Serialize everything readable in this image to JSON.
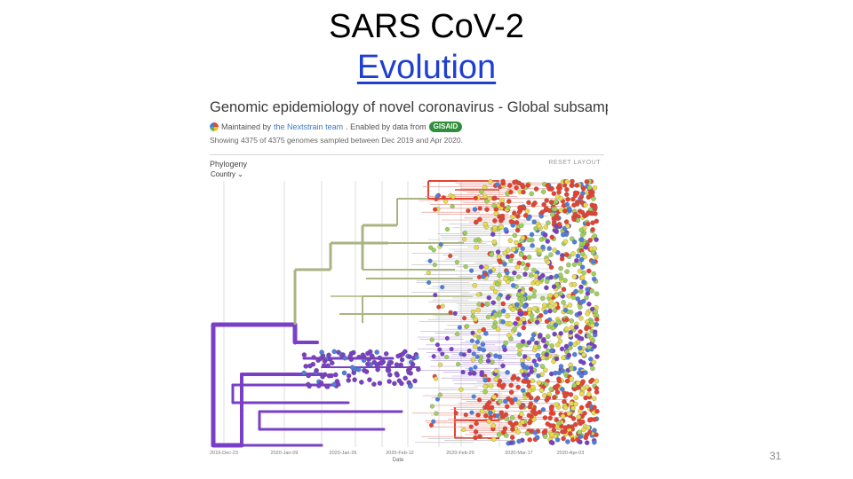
{
  "slide": {
    "title_line1": "SARS CoV-2",
    "title_line2": "Evolution",
    "page_number": "31"
  },
  "screenshot": {
    "title": "Genomic epidemiology of novel coronavirus - Global subsampling",
    "maintained_prefix": "Maintained by",
    "maintained_team": "the Nextstrain team",
    "enabled_text": ". Enabled by data from",
    "gisaid": "GISAID",
    "showing": "Showing 4375 of 4375 genomes sampled between Dec 2019 and Apr 2020.",
    "panel_label": "Phylogeny",
    "reset_label": "RESET LAYOUT",
    "color_by": "Country",
    "date_ticks": [
      "2019-Dec-23",
      "2020-Jan-09",
      "2020-Jan-26",
      "2020-Feb-12",
      "2020-Feb-29",
      "2020-Mar-17",
      "2020-Apr-03"
    ],
    "axis_label": "Date"
  },
  "colors": {
    "title": "#000000",
    "link": "#1f3fd0",
    "clade_red": "#e8412f",
    "clade_green": "#9fd15a",
    "clade_yellow": "#e9dc4b",
    "clade_blue": "#4d7fe0",
    "clade_purple": "#7a3fc7",
    "branch_olive": "#aab482"
  }
}
